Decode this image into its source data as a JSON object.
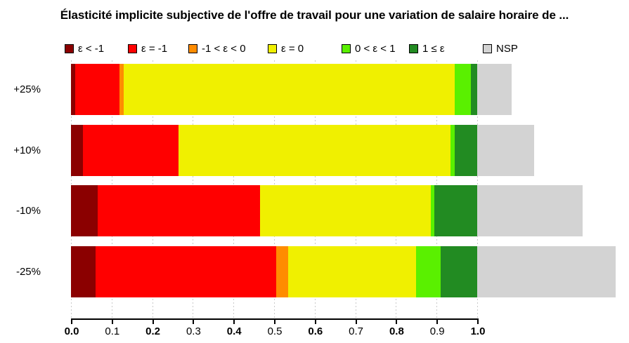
{
  "title": "Élasticité implicite subjective de l'offre de travail pour une variation de salaire horaire de ...",
  "chart_data": {
    "type": "bar",
    "orientation": "horizontal",
    "stacked": true,
    "title": "Élasticité implicite subjective de l'offre de travail pour une variation de salaire horaire de ...",
    "categories": [
      "+25%",
      "+10%",
      "-10%",
      "-25%"
    ],
    "series": [
      {
        "name": "ε < -1",
        "color": "#8B0000",
        "values": [
          0.01,
          0.03,
          0.065,
          0.06
        ]
      },
      {
        "name": "ε = -1",
        "color": "#FF0000",
        "values": [
          0.11,
          0.235,
          0.4,
          0.445
        ]
      },
      {
        "name": "-1 < ε < 0",
        "color": "#FF8C00",
        "values": [
          0.01,
          0.0,
          0.0,
          0.03
        ]
      },
      {
        "name": "ε = 0",
        "color": "#F0F000",
        "values": [
          0.815,
          0.67,
          0.42,
          0.315
        ]
      },
      {
        "name": "0 < ε < 1",
        "color": "#5AF000",
        "values": [
          0.04,
          0.01,
          0.01,
          0.06
        ]
      },
      {
        "name": "1 ≤ ε",
        "color": "#228B22",
        "values": [
          0.015,
          0.055,
          0.105,
          0.09
        ]
      },
      {
        "name": "NSP",
        "color": "#D3D3D3",
        "values": [
          0.085,
          0.14,
          0.26,
          0.34
        ]
      }
    ],
    "x_ticks": [
      "0.0",
      "0.1",
      "0.2",
      "0.3",
      "0.4",
      "0.5",
      "0.6",
      "0.7",
      "0.8",
      "0.9",
      "1.0"
    ],
    "xlim": [
      0.0,
      1.0
    ],
    "xlabel": "",
    "ylabel": "",
    "grid": "vertical dotted gridlines at each 0.1 tick",
    "legend_position": "top",
    "note": "colored segments of each bar sum to 1.0; NSP segment extends beyond 1.0"
  }
}
